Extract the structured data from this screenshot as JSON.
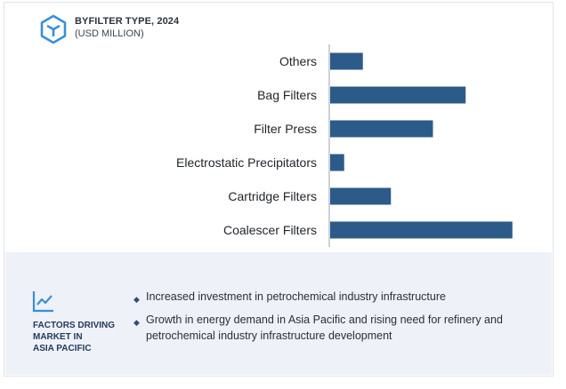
{
  "header": {
    "title": "BYFILTER TYPE, 2024",
    "subtitle": "(USD MILLION)",
    "logo_icon": "cube-icon"
  },
  "colors": {
    "bar": "#2c5b8a",
    "axis": "#9aa3ad",
    "panel": "#eef1f7",
    "accent": "#3a8fd6"
  },
  "chart_data": {
    "type": "bar",
    "orientation": "horizontal",
    "categories": [
      "Others",
      "Bag Filters",
      "Filter Press",
      "Electrostatic Precipitators",
      "Cartridge Filters",
      "Coalescer Filters"
    ],
    "values": [
      3.5,
      14.5,
      11,
      1.5,
      6.5,
      19.5
    ],
    "title": "BYFILTER TYPE, 2024",
    "ylabel": "(USD MILLION)",
    "xlim": [
      0,
      20
    ],
    "grid": false,
    "legend": "none"
  },
  "factors": {
    "icon": "line-chart-icon",
    "title": "FACTORS DRIVING\nMARKET IN\nASIA PACIFIC",
    "bullets": [
      "Increased investment in petrochemical industry infrastructure",
      "Growth in energy demand in Asia Pacific and rising need for refinery and petrochemical industry infrastructure development"
    ]
  }
}
